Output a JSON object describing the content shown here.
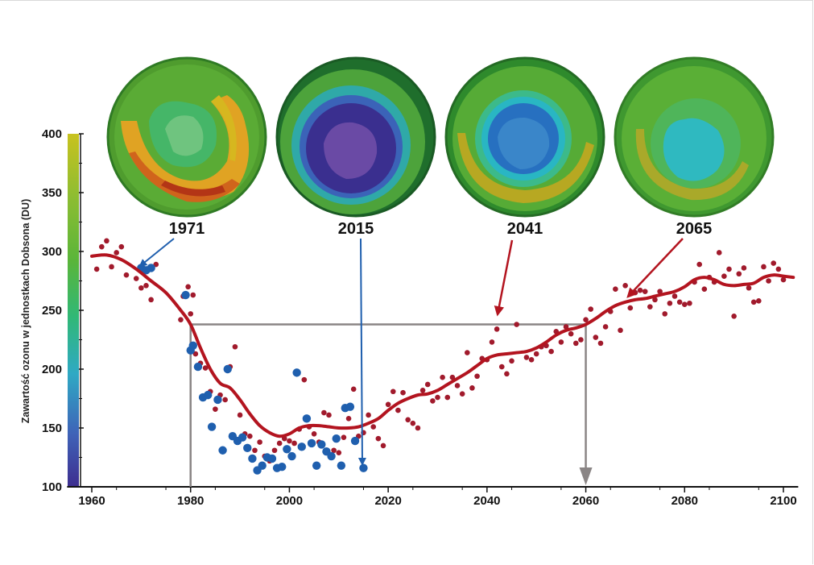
{
  "chart_data": {
    "type": "scatter",
    "title": "",
    "xlabel": "",
    "ylabel": "Zawartość ozonu w jednostkach Dobsona (DU)",
    "xlim": [
      1955,
      2103
    ],
    "ylim": [
      100,
      400
    ],
    "x_ticks": [
      1960,
      1980,
      2000,
      2020,
      2040,
      2060,
      2080,
      2100
    ],
    "y_ticks": [
      100,
      150,
      200,
      250,
      300,
      350,
      400
    ],
    "colorbar": {
      "min": 100,
      "max": 400,
      "colors": [
        "#3d2e8f",
        "#3f63b8",
        "#2fa9c4",
        "#30b877",
        "#5ab53a",
        "#8dbd32",
        "#c8c21f"
      ]
    },
    "snapshot_years": [
      "1971",
      "2015",
      "2041",
      "2065"
    ],
    "reference_line": {
      "y": 238,
      "x_start": 1980,
      "x_end": 2060
    },
    "series": [
      {
        "kind": "observed",
        "color": "#1f5fae",
        "points": [
          [
            1970,
            286
          ],
          [
            1971,
            284
          ],
          [
            1972,
            286
          ],
          [
            1979,
            263
          ],
          [
            1980,
            216
          ],
          [
            1980.5,
            220
          ],
          [
            1981.5,
            202
          ],
          [
            1982.5,
            176
          ],
          [
            1983.5,
            178
          ],
          [
            1984.3,
            151
          ],
          [
            1985.5,
            174
          ],
          [
            1986.5,
            131
          ],
          [
            1987.5,
            200
          ],
          [
            1988.5,
            143
          ],
          [
            1989.5,
            139
          ],
          [
            1990.5,
            142
          ],
          [
            1991.5,
            133
          ],
          [
            1992.5,
            124
          ],
          [
            1993.5,
            114
          ],
          [
            1994.5,
            118
          ],
          [
            1995.5,
            125
          ],
          [
            1996.5,
            124
          ],
          [
            1997.5,
            116
          ],
          [
            1998.5,
            117
          ],
          [
            1999.5,
            132
          ],
          [
            2000.5,
            126
          ],
          [
            2001.5,
            197
          ],
          [
            2002.5,
            134
          ],
          [
            2003.5,
            158
          ],
          [
            2004.5,
            137
          ],
          [
            2005.5,
            118
          ],
          [
            2006.5,
            136
          ],
          [
            2007.5,
            130
          ],
          [
            2008.5,
            126
          ],
          [
            2009.5,
            141
          ],
          [
            2010.5,
            118
          ],
          [
            2011.3,
            167
          ],
          [
            2012.3,
            168
          ],
          [
            2013.3,
            139
          ],
          [
            2015,
            116
          ]
        ]
      },
      {
        "kind": "model",
        "color": "#a11a2c",
        "points": [
          [
            1961,
            285
          ],
          [
            1962,
            304
          ],
          [
            1963,
            309
          ],
          [
            1964,
            287
          ],
          [
            1965,
            299
          ],
          [
            1966,
            304
          ],
          [
            1967,
            280
          ],
          [
            1969,
            277
          ],
          [
            1970,
            269
          ],
          [
            1971,
            271
          ],
          [
            1972,
            259
          ],
          [
            1973,
            289
          ],
          [
            1978,
            242
          ],
          [
            1978.5,
            262
          ],
          [
            1979.5,
            270
          ],
          [
            1980,
            247
          ],
          [
            1980.5,
            263
          ],
          [
            1981,
            213
          ],
          [
            1982,
            205
          ],
          [
            1983,
            201
          ],
          [
            1984,
            181
          ],
          [
            1985,
            166
          ],
          [
            1986,
            178
          ],
          [
            1987,
            174
          ],
          [
            1988,
            202
          ],
          [
            1989,
            219
          ],
          [
            1990,
            161
          ],
          [
            1991,
            145
          ],
          [
            1992,
            143
          ],
          [
            1993,
            131
          ],
          [
            1994,
            138
          ],
          [
            1995,
            126
          ],
          [
            1996,
            122
          ],
          [
            1997,
            131
          ],
          [
            1998,
            137
          ],
          [
            1999,
            141
          ],
          [
            2000,
            139
          ],
          [
            2001,
            137
          ],
          [
            2002,
            149
          ],
          [
            2003,
            191
          ],
          [
            2004,
            151
          ],
          [
            2005,
            145
          ],
          [
            2006,
            138
          ],
          [
            2007,
            163
          ],
          [
            2008,
            161
          ],
          [
            2009,
            131
          ],
          [
            2010,
            129
          ],
          [
            2011,
            142
          ],
          [
            2012,
            158
          ],
          [
            2013,
            183
          ],
          [
            2014,
            143
          ],
          [
            2015,
            146
          ],
          [
            2016,
            161
          ],
          [
            2017,
            151
          ],
          [
            2018,
            141
          ],
          [
            2019,
            135
          ],
          [
            2020,
            170
          ],
          [
            2021,
            181
          ],
          [
            2022,
            165
          ],
          [
            2023,
            180
          ],
          [
            2024,
            157
          ],
          [
            2025,
            154
          ],
          [
            2026,
            150
          ],
          [
            2027,
            182
          ],
          [
            2028,
            187
          ],
          [
            2029,
            173
          ],
          [
            2030,
            176
          ],
          [
            2031,
            193
          ],
          [
            2032,
            176
          ],
          [
            2033,
            193
          ],
          [
            2034,
            186
          ],
          [
            2035,
            179
          ],
          [
            2036,
            214
          ],
          [
            2037,
            184
          ],
          [
            2038,
            194
          ],
          [
            2039,
            209
          ],
          [
            2040,
            208
          ],
          [
            2041,
            223
          ],
          [
            2042,
            234
          ],
          [
            2043,
            202
          ],
          [
            2044,
            196
          ],
          [
            2045,
            207
          ],
          [
            2046,
            238
          ],
          [
            2048,
            210
          ],
          [
            2049,
            208
          ],
          [
            2050,
            213
          ],
          [
            2051,
            219
          ],
          [
            2052,
            220
          ],
          [
            2053,
            215
          ],
          [
            2054,
            232
          ],
          [
            2055,
            223
          ],
          [
            2056,
            236
          ],
          [
            2057,
            230
          ],
          [
            2058,
            222
          ],
          [
            2059,
            225
          ],
          [
            2060,
            242
          ],
          [
            2061,
            251
          ],
          [
            2062,
            227
          ],
          [
            2063,
            222
          ],
          [
            2064,
            236
          ],
          [
            2065,
            249
          ],
          [
            2066,
            268
          ],
          [
            2067,
            233
          ],
          [
            2068,
            271
          ],
          [
            2069,
            252
          ],
          [
            2070,
            265
          ],
          [
            2071,
            267
          ],
          [
            2072,
            266
          ],
          [
            2073,
            253
          ],
          [
            2074,
            259
          ],
          [
            2075,
            266
          ],
          [
            2076,
            247
          ],
          [
            2077,
            256
          ],
          [
            2078,
            262
          ],
          [
            2079,
            257
          ],
          [
            2080,
            255
          ],
          [
            2081,
            256
          ],
          [
            2082,
            274
          ],
          [
            2083,
            289
          ],
          [
            2084,
            268
          ],
          [
            2085,
            278
          ],
          [
            2086,
            274
          ],
          [
            2087,
            299
          ],
          [
            2088,
            279
          ],
          [
            2089,
            285
          ],
          [
            2090,
            245
          ],
          [
            2091,
            281
          ],
          [
            2092,
            286
          ],
          [
            2093,
            269
          ],
          [
            2094,
            257
          ],
          [
            2095,
            258
          ],
          [
            2096,
            287
          ],
          [
            2097,
            275
          ],
          [
            2098,
            290
          ],
          [
            2099,
            285
          ],
          [
            2100,
            276
          ]
        ]
      },
      {
        "kind": "trend",
        "color": "#b3141f",
        "points": [
          [
            1960,
            296
          ],
          [
            1963,
            297
          ],
          [
            1966,
            293
          ],
          [
            1969,
            285
          ],
          [
            1972,
            275
          ],
          [
            1975,
            265
          ],
          [
            1978,
            250
          ],
          [
            1980,
            238
          ],
          [
            1982,
            218
          ],
          [
            1984,
            200
          ],
          [
            1986,
            188
          ],
          [
            1988,
            184
          ],
          [
            1990,
            174
          ],
          [
            1992,
            162
          ],
          [
            1994,
            152
          ],
          [
            1996,
            146
          ],
          [
            1998,
            143
          ],
          [
            2000,
            145
          ],
          [
            2002,
            150
          ],
          [
            2004,
            152
          ],
          [
            2006,
            152
          ],
          [
            2008,
            151
          ],
          [
            2010,
            150
          ],
          [
            2012,
            150
          ],
          [
            2014,
            151
          ],
          [
            2016,
            154
          ],
          [
            2018,
            158
          ],
          [
            2020,
            165
          ],
          [
            2022,
            171
          ],
          [
            2024,
            175
          ],
          [
            2026,
            178
          ],
          [
            2028,
            179
          ],
          [
            2030,
            182
          ],
          [
            2032,
            187
          ],
          [
            2034,
            192
          ],
          [
            2036,
            197
          ],
          [
            2038,
            203
          ],
          [
            2040,
            209
          ],
          [
            2042,
            212
          ],
          [
            2044,
            213
          ],
          [
            2046,
            214
          ],
          [
            2048,
            215
          ],
          [
            2050,
            218
          ],
          [
            2052,
            223
          ],
          [
            2054,
            229
          ],
          [
            2056,
            233
          ],
          [
            2058,
            235
          ],
          [
            2060,
            238
          ],
          [
            2062,
            243
          ],
          [
            2064,
            249
          ],
          [
            2066,
            254
          ],
          [
            2068,
            257
          ],
          [
            2070,
            259
          ],
          [
            2072,
            260
          ],
          [
            2074,
            262
          ],
          [
            2076,
            264
          ],
          [
            2078,
            266
          ],
          [
            2080,
            270
          ],
          [
            2082,
            276
          ],
          [
            2084,
            278
          ],
          [
            2086,
            276
          ],
          [
            2088,
            272
          ],
          [
            2090,
            271
          ],
          [
            2092,
            272
          ],
          [
            2094,
            273
          ],
          [
            2096,
            278
          ],
          [
            2098,
            280
          ],
          [
            2100,
            279
          ],
          [
            2102,
            278
          ]
        ]
      }
    ]
  }
}
